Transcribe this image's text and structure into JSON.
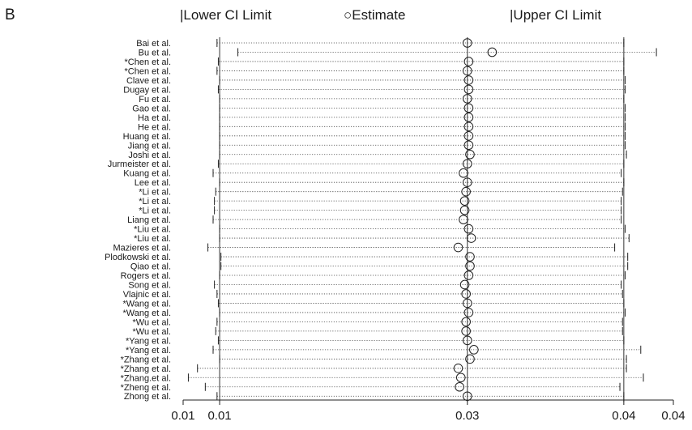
{
  "panel_label": "B",
  "legend": {
    "lower_marker": "|",
    "lower": "Lower CI Limit",
    "estimate_marker": "○",
    "estimate": "Estimate",
    "upper_marker": "|",
    "upper": "Upper CI Limit"
  },
  "chart_data": {
    "type": "forest-sensitivity",
    "title": "",
    "xlabel": "",
    "ylabel": "",
    "x_ticks": [
      {
        "label": "0.01",
        "value": 0.0082
      },
      {
        "label": "0.01",
        "value": 0.011
      },
      {
        "label": "0.03",
        "value": 0.03
      },
      {
        "label": "0.04",
        "value": 0.042
      },
      {
        "label": "0.04",
        "value": 0.0458
      }
    ],
    "xlim": [
      0.0082,
      0.0458
    ],
    "reference_lines": [
      0.011,
      0.03,
      0.042
    ],
    "grid": false,
    "legend_position": "top",
    "studies": [
      {
        "name": "Bai et al.",
        "lower": 0.0108,
        "estimate": 0.03,
        "upper": 0.042
      },
      {
        "name": "Bu et al.",
        "lower": 0.0124,
        "estimate": 0.0319,
        "upper": 0.0445
      },
      {
        "name": "*Chen et al.",
        "lower": 0.0109,
        "estimate": 0.0301,
        "upper": 0.042
      },
      {
        "name": "*Chen et al.",
        "lower": 0.0108,
        "estimate": 0.03,
        "upper": 0.042
      },
      {
        "name": "Clave et al.",
        "lower": 0.011,
        "estimate": 0.0301,
        "upper": 0.0421
      },
      {
        "name": "Dugay et al.",
        "lower": 0.0109,
        "estimate": 0.0301,
        "upper": 0.0421
      },
      {
        "name": "Fu et al.",
        "lower": 0.011,
        "estimate": 0.03,
        "upper": 0.042
      },
      {
        "name": "Gao et al.",
        "lower": 0.011,
        "estimate": 0.0301,
        "upper": 0.0421
      },
      {
        "name": "Ha et al.",
        "lower": 0.011,
        "estimate": 0.0301,
        "upper": 0.0421
      },
      {
        "name": "He et al.",
        "lower": 0.011,
        "estimate": 0.0301,
        "upper": 0.0421
      },
      {
        "name": "Huang et al.",
        "lower": 0.011,
        "estimate": 0.0301,
        "upper": 0.0421
      },
      {
        "name": "Jiang et al.",
        "lower": 0.011,
        "estimate": 0.0301,
        "upper": 0.0421
      },
      {
        "name": "Joshi et al.",
        "lower": 0.011,
        "estimate": 0.0302,
        "upper": 0.0422
      },
      {
        "name": "Jurmeister et al.",
        "lower": 0.0109,
        "estimate": 0.03,
        "upper": 0.042
      },
      {
        "name": "Kuang et al.",
        "lower": 0.0105,
        "estimate": 0.0297,
        "upper": 0.0418
      },
      {
        "name": "Lee et al.",
        "lower": 0.011,
        "estimate": 0.03,
        "upper": 0.042
      },
      {
        "name": "*Li et al.",
        "lower": 0.0107,
        "estimate": 0.0299,
        "upper": 0.0419
      },
      {
        "name": "*Li et al.",
        "lower": 0.0106,
        "estimate": 0.0298,
        "upper": 0.0418
      },
      {
        "name": "*Li et al.",
        "lower": 0.0106,
        "estimate": 0.0298,
        "upper": 0.0418
      },
      {
        "name": "Liang et al.",
        "lower": 0.0105,
        "estimate": 0.0297,
        "upper": 0.0418
      },
      {
        "name": "*Liu et al.",
        "lower": 0.011,
        "estimate": 0.0301,
        "upper": 0.0421
      },
      {
        "name": "*Liu et al.",
        "lower": 0.011,
        "estimate": 0.0303,
        "upper": 0.0424
      },
      {
        "name": "Mazieres et al.",
        "lower": 0.0101,
        "estimate": 0.0293,
        "upper": 0.0413
      },
      {
        "name": "Plodkowski et al.",
        "lower": 0.0111,
        "estimate": 0.0302,
        "upper": 0.0423
      },
      {
        "name": "Qiao et al.",
        "lower": 0.0111,
        "estimate": 0.0302,
        "upper": 0.0423
      },
      {
        "name": "Rogers et al.",
        "lower": 0.011,
        "estimate": 0.0301,
        "upper": 0.0421
      },
      {
        "name": "Song et al.",
        "lower": 0.0106,
        "estimate": 0.0298,
        "upper": 0.0418
      },
      {
        "name": "Vlajnic et al.",
        "lower": 0.0108,
        "estimate": 0.0299,
        "upper": 0.0419
      },
      {
        "name": "*Wang et al.",
        "lower": 0.0109,
        "estimate": 0.03,
        "upper": 0.042
      },
      {
        "name": "*Wang et al.",
        "lower": 0.011,
        "estimate": 0.0301,
        "upper": 0.0421
      },
      {
        "name": "*Wu et al.",
        "lower": 0.0108,
        "estimate": 0.0299,
        "upper": 0.0419
      },
      {
        "name": "*Wu et al.",
        "lower": 0.0107,
        "estimate": 0.0299,
        "upper": 0.0419
      },
      {
        "name": "*Yang et al.",
        "lower": 0.0109,
        "estimate": 0.03,
        "upper": 0.042
      },
      {
        "name": "*Yang et al.",
        "lower": 0.0105,
        "estimate": 0.0305,
        "upper": 0.0433
      },
      {
        "name": "*Zhang et al.",
        "lower": 0.011,
        "estimate": 0.0302,
        "upper": 0.0422
      },
      {
        "name": "*Zhang et al.",
        "lower": 0.0093,
        "estimate": 0.0293,
        "upper": 0.0422
      },
      {
        "name": "*Zhang.et al.",
        "lower": 0.0086,
        "estimate": 0.0295,
        "upper": 0.0435
      },
      {
        "name": "*Zheng et al.",
        "lower": 0.0099,
        "estimate": 0.0294,
        "upper": 0.0417
      },
      {
        "name": "Zhong et al.",
        "lower": 0.0108,
        "estimate": 0.03,
        "upper": 0.042
      }
    ]
  }
}
